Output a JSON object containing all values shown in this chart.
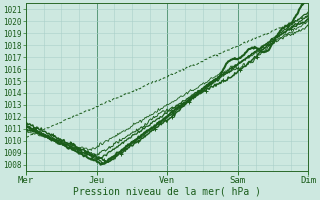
{
  "bg_color": "#cde8e0",
  "grid_color_minor": "#aacfca",
  "grid_color_major": "#5a9a7a",
  "line_color": "#1a5c1a",
  "ylabel_ticks": [
    1008,
    1009,
    1010,
    1011,
    1012,
    1013,
    1014,
    1015,
    1016,
    1017,
    1018,
    1019,
    1020,
    1021
  ],
  "xlabels": [
    "Mer",
    "Jeu",
    "Ven",
    "Sam",
    "Dim"
  ],
  "xlabel": "Pression niveau de la mer( hPa )",
  "ymin": 1007.5,
  "ymax": 1021.5,
  "xmin": 0,
  "xmax": 96,
  "xtick_pos": [
    0,
    24,
    48,
    72,
    96
  ]
}
